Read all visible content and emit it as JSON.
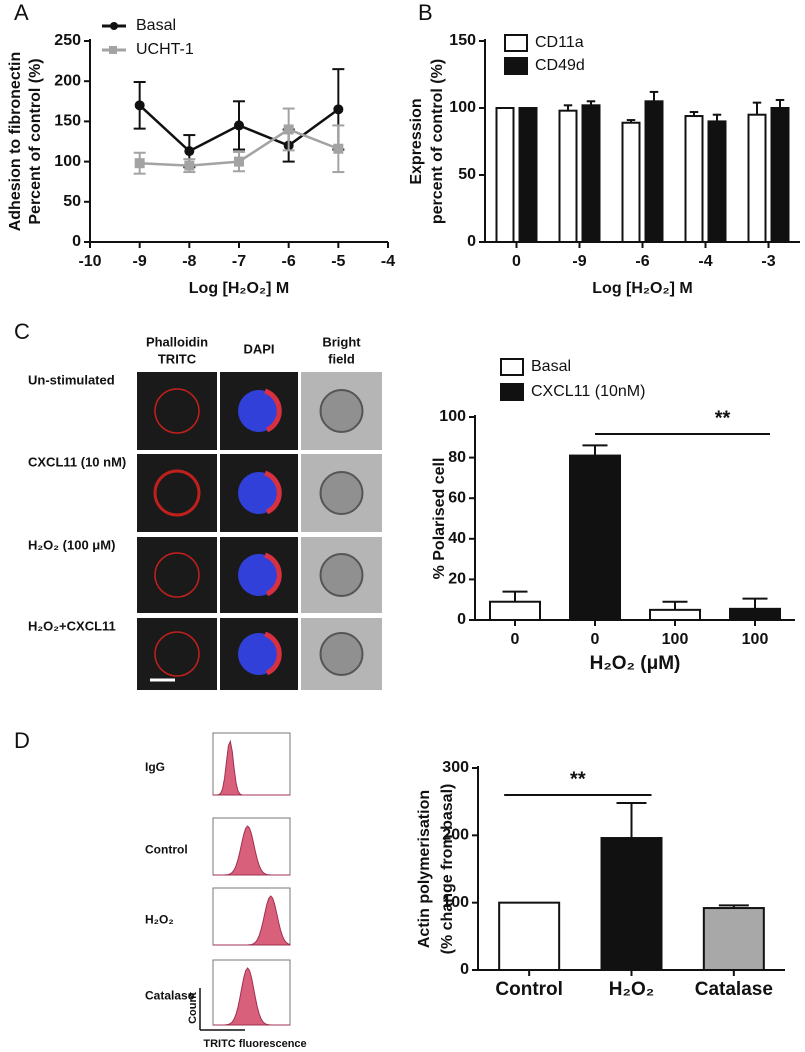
{
  "chart_data": [
    {
      "type": "line",
      "xlabel": "Log [H₂O₂] M",
      "ylabel": [
        "Adhesion to fibronectin",
        "Percent of control (%)"
      ],
      "x": [
        -9,
        -8,
        -7,
        -6,
        -5
      ],
      "xlim": [
        -10,
        -4
      ],
      "xticks": [
        -10,
        -9,
        -8,
        -7,
        -6,
        -5,
        -4
      ],
      "ylim": [
        0,
        250
      ],
      "yticks": [
        0,
        50,
        100,
        150,
        200,
        250
      ],
      "series": [
        {
          "name": "Basal",
          "color": "#111111",
          "values": [
            170,
            113,
            145,
            120,
            165
          ],
          "errors": [
            29,
            20,
            30,
            20,
            50
          ]
        },
        {
          "name": "UCHT-1",
          "color": "#a3a3a3",
          "values": [
            98,
            95,
            100,
            140,
            116
          ],
          "errors": [
            13,
            8,
            12,
            26,
            29
          ]
        }
      ]
    },
    {
      "type": "bar",
      "xlabel": "Log [H₂O₂] M",
      "ylabel": [
        "Expression",
        "percent of control (%)"
      ],
      "categories": [
        "0",
        "-9",
        "-6",
        "-4",
        "-3"
      ],
      "ylim": [
        0,
        150
      ],
      "yticks": [
        0,
        50,
        100,
        150
      ],
      "series": [
        {
          "name": "CD11a",
          "color": "#ffffff",
          "values": [
            100,
            98,
            89,
            94,
            95
          ],
          "errors": [
            0,
            4,
            2,
            3,
            9
          ]
        },
        {
          "name": "CD49d",
          "color": "#111111",
          "values": [
            100,
            102,
            105,
            90,
            100
          ],
          "errors": [
            0,
            3,
            7,
            5,
            6
          ]
        }
      ]
    },
    {
      "type": "bar",
      "xlabel": "H₂O₂ (μM)",
      "ylabel": [
        "% Polarised cell"
      ],
      "categories": [
        "0",
        "0",
        "100",
        "100"
      ],
      "ylim": [
        0,
        100
      ],
      "yticks": [
        0,
        20,
        40,
        60,
        80,
        100
      ],
      "annotation": "**",
      "series": [
        {
          "name": "Basal",
          "color": "#ffffff",
          "values": [
            9,
            null,
            5,
            null
          ],
          "errors": [
            5,
            null,
            4,
            null
          ]
        },
        {
          "name": "CXCL11 (10nM)",
          "color": "#111111",
          "values": [
            null,
            81,
            null,
            5.5
          ],
          "errors": [
            null,
            5,
            null,
            5
          ]
        }
      ]
    },
    {
      "type": "bar",
      "ylabel": [
        "Actin polymerisation",
        "(% change from basal)"
      ],
      "categories": [
        "Control",
        "H₂O₂",
        "Catalase"
      ],
      "ylim": [
        0,
        300
      ],
      "yticks": [
        0,
        100,
        200,
        300
      ],
      "annotation": "**",
      "values": [
        100,
        196,
        92
      ],
      "errors": [
        0,
        52,
        4
      ],
      "colors": [
        "#ffffff",
        "#111111",
        "#a8a8a8"
      ]
    }
  ],
  "figure": {
    "panel_labels": [
      "A",
      "B",
      "C",
      "D"
    ],
    "microscopy": {
      "columns": [
        [
          "Phalloidin",
          "TRITC"
        ],
        [
          "DAPI"
        ],
        [
          "Bright",
          "field"
        ]
      ],
      "rows": [
        "Un-stimulated",
        "CXCL11 (10 nM)",
        "H₂O₂ (100 μM)",
        "H₂O₂+CXCL11"
      ]
    },
    "flow": {
      "rows": [
        "IgG",
        "Control",
        "H₂O₂",
        "Catalase"
      ],
      "y_axis": "Count",
      "x_axis": "TRITC fluorescence"
    }
  }
}
